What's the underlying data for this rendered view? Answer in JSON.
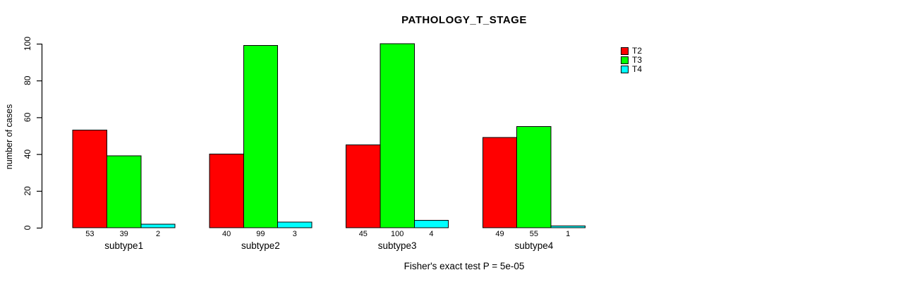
{
  "chart_data": {
    "type": "bar",
    "title": "PATHOLOGY_T_STAGE",
    "xlabel": "",
    "ylabel": "number of cases",
    "annotation": "Fisher's exact test P = 5e-05",
    "categories": [
      "subtype1",
      "subtype2",
      "subtype3",
      "subtype4"
    ],
    "series": [
      {
        "name": "T2",
        "color": "#ff0000",
        "values": [
          53,
          40,
          45,
          49
        ]
      },
      {
        "name": "T3",
        "color": "#00ff00",
        "values": [
          39,
          99,
          100,
          55
        ]
      },
      {
        "name": "T4",
        "color": "#00ffff",
        "values": [
          2,
          3,
          4,
          1
        ]
      }
    ],
    "bar_value_labels": [
      [
        "53",
        "39",
        "2"
      ],
      [
        "40",
        "99",
        "3"
      ],
      [
        "45",
        "100",
        "4"
      ],
      [
        "49",
        "55",
        "1"
      ]
    ],
    "ylim": [
      0,
      100
    ],
    "yticks": [
      0,
      20,
      40,
      60,
      80,
      100
    ],
    "grid": false,
    "legend_position": "right",
    "bar_border_color": "#000000",
    "axis_color": "#000000",
    "text_color": "#000000",
    "background_color": "#ffffff"
  }
}
